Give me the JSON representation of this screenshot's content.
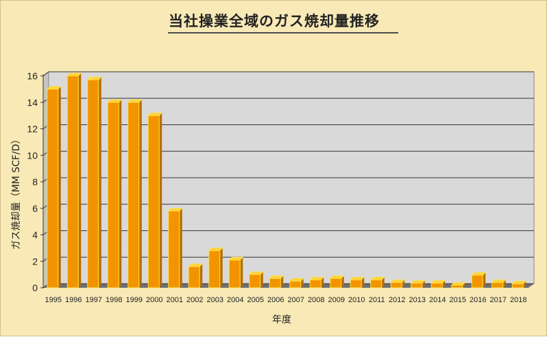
{
  "chart_data": {
    "type": "bar",
    "title": "当社操業全域のガス焼却量推移",
    "xlabel": "年度",
    "ylabel": "ガス焼却量（MM SCF/D）",
    "categories": [
      "1995",
      "1996",
      "1997",
      "1998",
      "1999",
      "2000",
      "2001",
      "2002",
      "2003",
      "2004",
      "2005",
      "2006",
      "2007",
      "2008",
      "2009",
      "2010",
      "2011",
      "2012",
      "2013",
      "2014",
      "2015",
      "2016",
      "2017",
      "2018"
    ],
    "values": [
      15.0,
      16.0,
      15.7,
      14.0,
      14.0,
      13.0,
      5.8,
      1.6,
      2.8,
      2.1,
      1.0,
      0.7,
      0.5,
      0.6,
      0.7,
      0.6,
      0.6,
      0.4,
      0.35,
      0.35,
      0.2,
      0.95,
      0.4,
      0.3
    ],
    "ylim": [
      0,
      16
    ],
    "yticks": [
      0,
      2,
      4,
      6,
      8,
      10,
      12,
      14,
      16
    ],
    "grid": true,
    "legend": "none",
    "colors": {
      "bar_front": "#f29400",
      "bar_side": "#b86c00",
      "bar_top": "#ffd23a",
      "bar_edge": "#ffe24a",
      "plot_bg": "#d9d9d9",
      "floor": "#6f6f6f"
    }
  }
}
